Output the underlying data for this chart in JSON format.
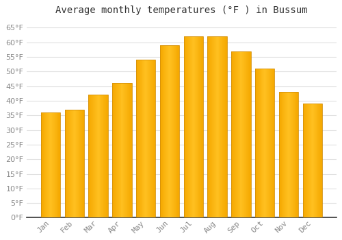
{
  "title": "Average monthly temperatures (°F ) in Bussum",
  "months": [
    "Jan",
    "Feb",
    "Mar",
    "Apr",
    "May",
    "Jun",
    "Jul",
    "Aug",
    "Sep",
    "Oct",
    "Nov",
    "Dec"
  ],
  "values": [
    36,
    37,
    42,
    46,
    54,
    59,
    62,
    62,
    57,
    51,
    43,
    39
  ],
  "bar_color_center": "#FFC020",
  "bar_color_edge": "#F5A800",
  "background_color": "#FFFFFF",
  "grid_color": "#E0E0E0",
  "ylim": [
    0,
    68
  ],
  "yticks": [
    0,
    5,
    10,
    15,
    20,
    25,
    30,
    35,
    40,
    45,
    50,
    55,
    60,
    65
  ],
  "ylabel_suffix": "°F",
  "title_fontsize": 10,
  "tick_fontsize": 8,
  "tick_color": "#888888",
  "axis_color": "#333333",
  "bar_width": 0.82
}
